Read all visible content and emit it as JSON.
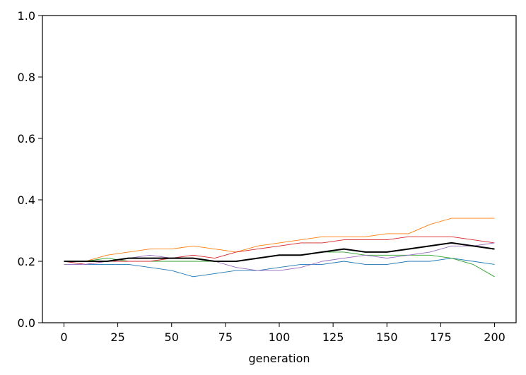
{
  "chart_data": {
    "type": "line",
    "title": "",
    "xlabel": "generation",
    "ylabel": "",
    "xlim": [
      -10,
      210
    ],
    "ylim": [
      0.0,
      1.0
    ],
    "xticks": [
      0,
      25,
      50,
      75,
      100,
      125,
      150,
      175,
      200
    ],
    "yticks": [
      0.0,
      0.2,
      0.4,
      0.6,
      0.8,
      1.0
    ],
    "xtick_labels": [
      "0",
      "25",
      "50",
      "75",
      "100",
      "125",
      "150",
      "175",
      "200"
    ],
    "ytick_labels": [
      "0.0",
      "0.2",
      "0.4",
      "0.6",
      "0.8",
      "1.0"
    ],
    "grid": false,
    "legend": "none",
    "x": [
      0,
      10,
      20,
      30,
      40,
      50,
      60,
      70,
      80,
      90,
      100,
      110,
      120,
      130,
      140,
      150,
      160,
      170,
      180,
      190,
      200
    ],
    "series": [
      {
        "color": "#1f77b4",
        "line_width": "thin",
        "values": [
          0.2,
          0.19,
          0.19,
          0.19,
          0.18,
          0.17,
          0.15,
          0.16,
          0.17,
          0.17,
          0.18,
          0.19,
          0.19,
          0.2,
          0.19,
          0.19,
          0.2,
          0.2,
          0.21,
          0.2,
          0.19
        ]
      },
      {
        "color": "#ff7f0e",
        "line_width": "thin",
        "values": [
          0.2,
          0.2,
          0.22,
          0.23,
          0.24,
          0.24,
          0.25,
          0.24,
          0.23,
          0.25,
          0.26,
          0.27,
          0.28,
          0.28,
          0.28,
          0.29,
          0.29,
          0.32,
          0.34,
          0.34,
          0.34
        ]
      },
      {
        "color": "#2ca02c",
        "line_width": "thin",
        "values": [
          0.2,
          0.2,
          0.21,
          0.2,
          0.2,
          0.2,
          0.2,
          0.2,
          0.2,
          0.21,
          0.22,
          0.22,
          0.23,
          0.23,
          0.22,
          0.22,
          0.22,
          0.22,
          0.21,
          0.19,
          0.15
        ]
      },
      {
        "color": "#d62728",
        "line_width": "thin",
        "values": [
          0.2,
          0.19,
          0.2,
          0.2,
          0.2,
          0.21,
          0.22,
          0.21,
          0.23,
          0.24,
          0.25,
          0.26,
          0.26,
          0.27,
          0.27,
          0.27,
          0.28,
          0.28,
          0.28,
          0.27,
          0.26
        ]
      },
      {
        "color": "#9467bd",
        "line_width": "thin",
        "values": [
          0.19,
          0.19,
          0.2,
          0.21,
          0.22,
          0.21,
          0.21,
          0.2,
          0.18,
          0.17,
          0.17,
          0.18,
          0.2,
          0.21,
          0.22,
          0.21,
          0.22,
          0.23,
          0.25,
          0.25,
          0.26
        ]
      },
      {
        "color": "#000000",
        "line_width": "thick",
        "values": [
          0.2,
          0.2,
          0.2,
          0.21,
          0.21,
          0.21,
          0.21,
          0.2,
          0.2,
          0.21,
          0.22,
          0.22,
          0.23,
          0.24,
          0.23,
          0.23,
          0.24,
          0.25,
          0.26,
          0.25,
          0.24
        ]
      }
    ]
  }
}
